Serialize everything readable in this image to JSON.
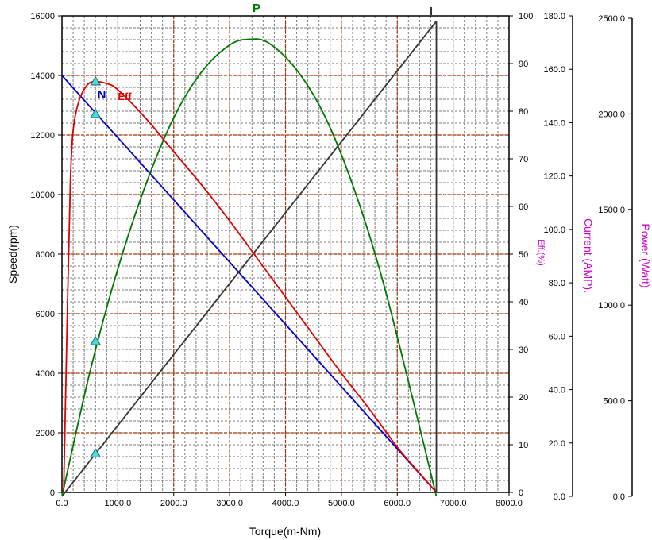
{
  "chart_data": {
    "type": "line",
    "title": "",
    "xlabel": "Torque(m-Nm)",
    "xlim": [
      0,
      8000
    ],
    "x_ticks": [
      "0.0",
      "1000.0",
      "2000.0",
      "3000.0",
      "4000.0",
      "5000.0",
      "6000.0",
      "7000.0",
      "8000.0"
    ],
    "grid": true,
    "axes": {
      "speed": {
        "label": "Speed(rpm)",
        "min": 0,
        "max": 16000,
        "ticks": [
          "0",
          "2000",
          "4000",
          "6000",
          "8000",
          "10000",
          "12000",
          "14000",
          "16000"
        ]
      },
      "eff": {
        "label": "Eff.(%)",
        "min": 0,
        "max": 100,
        "ticks": [
          "0",
          "10",
          "20",
          "30",
          "40",
          "50",
          "60",
          "70",
          "80",
          "90",
          "100"
        ]
      },
      "current": {
        "label": "Current (AMP).",
        "min": 0,
        "max": 180,
        "ticks": [
          "0.0",
          "20.0",
          "40.0",
          "60.0",
          "80.0",
          "100.0",
          "120.0",
          "140.0",
          "160.0",
          "180.0"
        ]
      },
      "power": {
        "label": "Power (Watt)",
        "min": 0,
        "max": 2500,
        "ticks": [
          "0.0",
          "500.0",
          "1000.0",
          "1500.0",
          "2000.0",
          "2500.0"
        ]
      }
    },
    "series": [
      {
        "name": "N",
        "axis": "speed",
        "color": "#0000cc",
        "x": [
          0,
          6700
        ],
        "y": [
          14000,
          0
        ]
      },
      {
        "name": "I",
        "axis": "current",
        "color": "#333333",
        "x": [
          0,
          6700
        ],
        "y": [
          0,
          178
        ]
      },
      {
        "name": "P",
        "axis": "power",
        "color": "#007700",
        "x": [
          0,
          500,
          1000,
          1500,
          2000,
          2500,
          3000,
          3350,
          3700,
          4200,
          4700,
          5200,
          5700,
          6200,
          6700
        ],
        "y": [
          0,
          650,
          1190,
          1630,
          1980,
          2220,
          2360,
          2390,
          2370,
          2230,
          1990,
          1630,
          1170,
          600,
          0
        ]
      },
      {
        "name": "Eff",
        "axis": "eff",
        "color": "#dd0000",
        "x": [
          30,
          100,
          150,
          200,
          300,
          450,
          600,
          800,
          1000,
          1500,
          2000,
          2500,
          3000,
          3500,
          4000,
          4500,
          5000,
          5500,
          6000,
          6400,
          6700
        ],
        "y": [
          0,
          40,
          65,
          76,
          82,
          85.5,
          86.2,
          85.8,
          84.5,
          78.5,
          71.5,
          64.5,
          57,
          49,
          41,
          33,
          25,
          17.5,
          9.5,
          4,
          0
        ]
      }
    ],
    "markers": {
      "shape": "triangle",
      "color": "#44dddd",
      "points": [
        {
          "x": 600,
          "axis": "eff",
          "y": 86.2
        },
        {
          "x": 600,
          "axis": "speed",
          "y": 12700
        },
        {
          "x": 600,
          "axis": "power",
          "y": 810
        },
        {
          "x": 600,
          "axis": "current",
          "y": 16
        }
      ]
    },
    "annotations": [
      {
        "text": "N",
        "color": "#0000cc"
      },
      {
        "text": "Eff",
        "color": "#dd0000"
      },
      {
        "text": "P",
        "color": "#007700"
      },
      {
        "text": "I",
        "color": "#333333"
      }
    ]
  }
}
